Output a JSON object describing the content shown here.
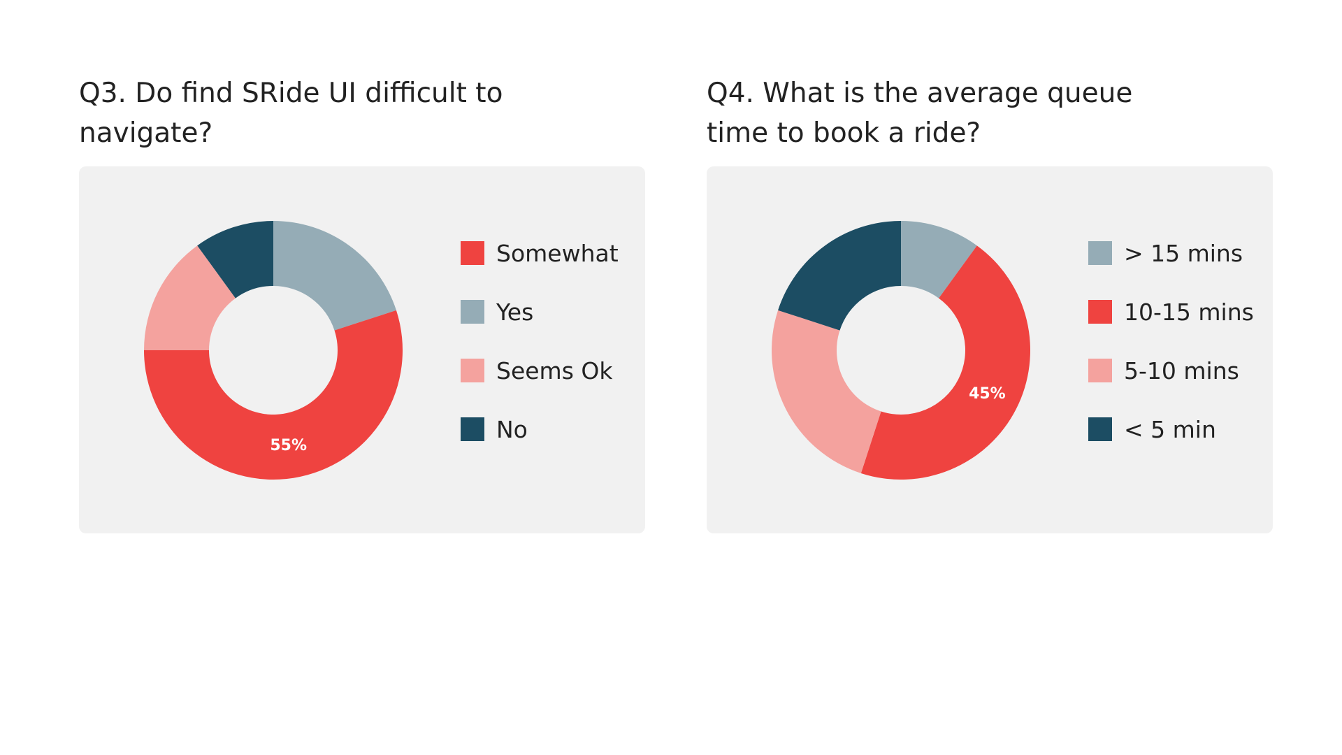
{
  "colors": {
    "red": "#ef4340",
    "gray_blue": "#95acb6",
    "pink": "#f4a29e",
    "navy": "#1c4d63",
    "card_bg": "#f1f1f1"
  },
  "chart_data": [
    {
      "type": "pie",
      "donut": true,
      "title": "Q3. Do find SRide UI difficult to navigate?",
      "categories": [
        "Somewhat",
        "Yes",
        "Seems Ok",
        "No"
      ],
      "values": [
        55,
        20,
        15,
        10
      ],
      "colors": [
        "#ef4340",
        "#95acb6",
        "#f4a29e",
        "#1c4d63"
      ],
      "slice_order": [
        "Yes",
        "Somewhat",
        "Seems Ok",
        "No"
      ],
      "data_labels": [
        {
          "category": "Somewhat",
          "text": "55%"
        }
      ],
      "legend": "right"
    },
    {
      "type": "pie",
      "donut": true,
      "title": "Q4. What is the average queue time to book a ride?",
      "categories": [
        "> 15 mins",
        "10-15 mins",
        "5-10 mins",
        "< 5 min"
      ],
      "values": [
        10,
        45,
        25,
        20
      ],
      "colors": [
        "#95acb6",
        "#ef4340",
        "#f4a29e",
        "#1c4d63"
      ],
      "slice_order": [
        "> 15 mins",
        "10-15 mins",
        "5-10 mins",
        "< 5 min"
      ],
      "data_labels": [
        {
          "category": "10-15 mins",
          "text": "45%"
        }
      ],
      "legend": "right"
    }
  ]
}
